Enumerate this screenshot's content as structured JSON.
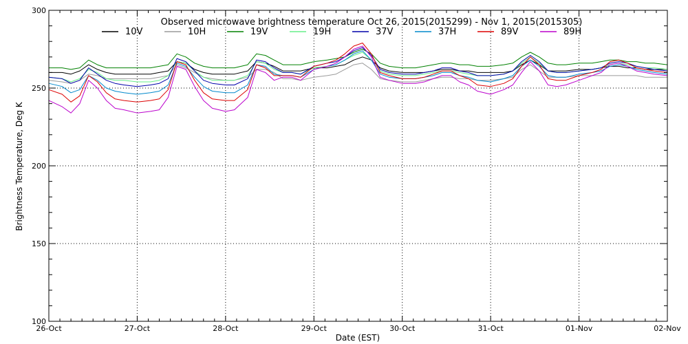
{
  "chart_data": {
    "type": "line",
    "title": "Observed microwave brightness temperature Oct 26, 2015(2015299) - Nov  1, 2015(2015305)",
    "xlabel": "Date (EST)",
    "ylabel": "Brightness Temperature, Deg K",
    "x_ticks": [
      "26-Oct",
      "27-Oct",
      "28-Oct",
      "29-Oct",
      "30-Oct",
      "31-Oct",
      "01-Nov",
      "02-Nov"
    ],
    "y_ticks": [
      "100",
      "150",
      "200",
      "250",
      "300"
    ],
    "xlim": [
      0,
      7
    ],
    "ylim": [
      100,
      300
    ],
    "grid": "dotted at major ticks",
    "legend_position": "top",
    "x_day_positions": [
      0,
      0.15,
      0.25,
      0.35,
      0.45,
      0.55,
      0.65,
      0.75,
      0.85,
      1,
      1.15,
      1.25,
      1.35,
      1.45,
      1.55,
      1.65,
      1.75,
      1.85,
      2,
      2.1,
      2.25,
      2.35,
      2.45,
      2.55,
      2.65,
      2.75,
      2.85,
      3,
      3.15,
      3.25,
      3.35,
      3.45,
      3.55,
      3.65,
      3.75,
      3.85,
      4,
      4.15,
      4.25,
      4.35,
      4.45,
      4.55,
      4.65,
      4.75,
      4.85,
      5,
      5.15,
      5.25,
      5.35,
      5.45,
      5.55,
      5.65,
      5.75,
      5.85,
      6,
      6.15,
      6.25,
      6.35,
      6.45,
      6.55,
      6.65,
      6.75,
      6.85,
      7
    ],
    "series": [
      {
        "name": "10V",
        "color": "#000000",
        "values": [
          260,
          260,
          259,
          261,
          265,
          262,
          260,
          259,
          259,
          259,
          259,
          260,
          261,
          267,
          266,
          262,
          260,
          259,
          259,
          259,
          261,
          267,
          266,
          264,
          261,
          261,
          261,
          263,
          263,
          264,
          265,
          268,
          270,
          268,
          263,
          261,
          260,
          260,
          260,
          261,
          262,
          262,
          261,
          261,
          260,
          260,
          260,
          261,
          265,
          268,
          265,
          261,
          261,
          261,
          262,
          262,
          263,
          264,
          264,
          263,
          263,
          262,
          262,
          262
        ]
      },
      {
        "name": "10H",
        "color": "#9a9a9a",
        "values": [
          255,
          254,
          253,
          255,
          259,
          258,
          256,
          256,
          256,
          256,
          256,
          257,
          258,
          265,
          263,
          260,
          257,
          256,
          255,
          255,
          257,
          262,
          262,
          260,
          256,
          256,
          255,
          257,
          258,
          259,
          262,
          265,
          266,
          262,
          256,
          255,
          254,
          254,
          255,
          256,
          257,
          257,
          256,
          256,
          255,
          255,
          256,
          257,
          262,
          265,
          261,
          257,
          257,
          257,
          258,
          258,
          258,
          258,
          258,
          258,
          258,
          257,
          257,
          257
        ]
      },
      {
        "name": "19V",
        "color": "#008000",
        "values": [
          263,
          263,
          262,
          263,
          268,
          265,
          263,
          263,
          263,
          263,
          263,
          264,
          265,
          272,
          270,
          266,
          264,
          263,
          263,
          263,
          265,
          272,
          271,
          268,
          265,
          265,
          265,
          267,
          268,
          269,
          270,
          273,
          275,
          272,
          266,
          264,
          263,
          263,
          264,
          265,
          266,
          266,
          265,
          265,
          264,
          264,
          265,
          266,
          270,
          273,
          270,
          266,
          265,
          265,
          266,
          266,
          267,
          268,
          268,
          267,
          267,
          266,
          266,
          265
        ]
      },
      {
        "name": "19H",
        "color": "#66ee88",
        "values": [
          257,
          256,
          254,
          256,
          262,
          260,
          256,
          255,
          255,
          254,
          254,
          255,
          258,
          267,
          266,
          261,
          257,
          255,
          255,
          255,
          258,
          267,
          266,
          262,
          260,
          260,
          259,
          263,
          264,
          265,
          268,
          271,
          273,
          268,
          261,
          259,
          258,
          258,
          259,
          260,
          261,
          261,
          260,
          259,
          258,
          258,
          259,
          261,
          266,
          270,
          266,
          261,
          260,
          260,
          261,
          262,
          263,
          265,
          266,
          265,
          264,
          263,
          263,
          262
        ]
      },
      {
        "name": "37V",
        "color": "#0000aa",
        "values": [
          257,
          256,
          253,
          255,
          263,
          259,
          255,
          253,
          252,
          251,
          252,
          253,
          256,
          269,
          267,
          261,
          255,
          253,
          252,
          252,
          256,
          268,
          267,
          263,
          260,
          260,
          259,
          264,
          266,
          267,
          270,
          274,
          276,
          271,
          262,
          260,
          259,
          259,
          260,
          261,
          263,
          263,
          261,
          260,
          258,
          258,
          259,
          261,
          267,
          271,
          267,
          261,
          260,
          260,
          261,
          262,
          263,
          266,
          267,
          266,
          264,
          263,
          262,
          261
        ]
      },
      {
        "name": "37H",
        "color": "#0088cc",
        "values": [
          253,
          251,
          247,
          249,
          258,
          255,
          250,
          248,
          247,
          246,
          247,
          248,
          252,
          266,
          264,
          257,
          251,
          248,
          247,
          247,
          252,
          265,
          264,
          259,
          258,
          258,
          257,
          262,
          264,
          265,
          268,
          272,
          274,
          268,
          259,
          257,
          256,
          256,
          257,
          258,
          260,
          260,
          258,
          257,
          255,
          254,
          256,
          258,
          264,
          268,
          264,
          258,
          257,
          257,
          259,
          260,
          261,
          264,
          265,
          264,
          262,
          261,
          260,
          259
        ]
      },
      {
        "name": "89V",
        "color": "#dd0000",
        "values": [
          249,
          246,
          241,
          245,
          258,
          254,
          247,
          243,
          242,
          241,
          242,
          243,
          249,
          267,
          265,
          255,
          247,
          243,
          242,
          242,
          249,
          265,
          263,
          258,
          258,
          258,
          257,
          264,
          266,
          268,
          272,
          277,
          279,
          272,
          260,
          258,
          256,
          256,
          257,
          259,
          261,
          261,
          258,
          256,
          252,
          251,
          253,
          256,
          264,
          270,
          265,
          256,
          255,
          255,
          258,
          260,
          262,
          267,
          268,
          266,
          263,
          262,
          261,
          260
        ]
      },
      {
        "name": "89H",
        "color": "#bb00cc",
        "values": [
          242,
          238,
          234,
          240,
          255,
          250,
          242,
          237,
          236,
          234,
          235,
          236,
          244,
          264,
          262,
          251,
          242,
          237,
          235,
          236,
          244,
          262,
          260,
          255,
          257,
          257,
          255,
          262,
          264,
          266,
          270,
          275,
          277,
          270,
          257,
          255,
          253,
          253,
          254,
          256,
          258,
          258,
          254,
          252,
          248,
          246,
          249,
          252,
          260,
          267,
          261,
          252,
          251,
          252,
          255,
          258,
          260,
          265,
          266,
          264,
          261,
          260,
          259,
          258
        ]
      }
    ]
  }
}
